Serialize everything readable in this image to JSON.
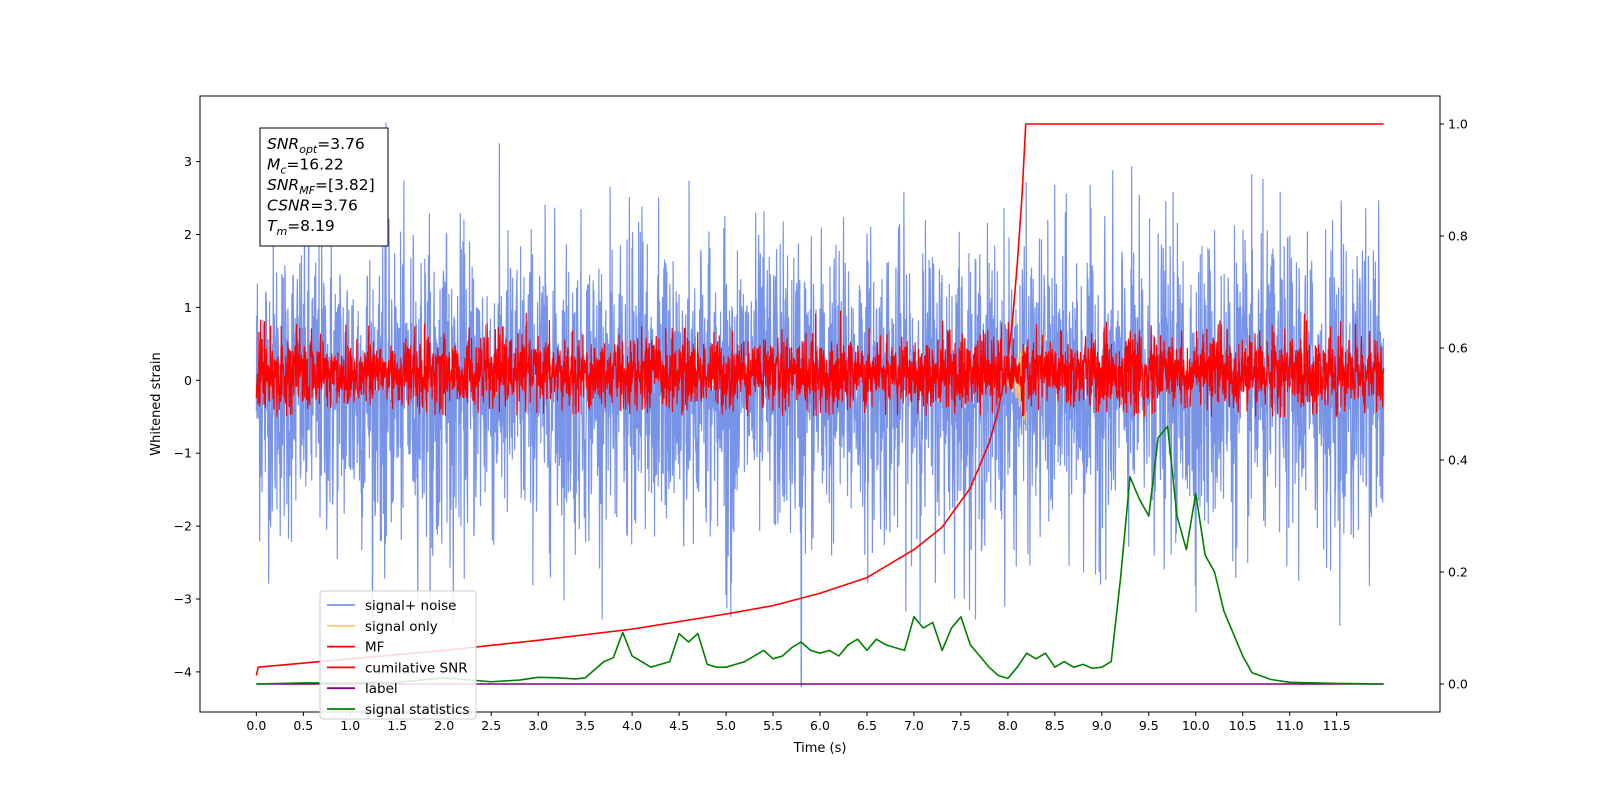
{
  "chart_data": {
    "type": "line",
    "xlabel": "Time (s)",
    "ylabel": "Whitened strain",
    "xlim": [
      -0.6,
      12.6
    ],
    "ylim": [
      -4.55,
      3.9
    ],
    "ylim_right": [
      -0.05,
      1.05
    ],
    "x_ticks": [
      "0.0",
      "0.5",
      "1.0",
      "1.5",
      "2.0",
      "2.5",
      "3.0",
      "3.5",
      "4.0",
      "4.5",
      "5.0",
      "5.5",
      "6.0",
      "6.5",
      "7.0",
      "7.5",
      "8.0",
      "8.5",
      "9.0",
      "9.5",
      "10.0",
      "10.5",
      "11.0",
      "11.5"
    ],
    "x_tick_values": [
      0.0,
      0.5,
      1.0,
      1.5,
      2.0,
      2.5,
      3.0,
      3.5,
      4.0,
      4.5,
      5.0,
      5.5,
      6.0,
      6.5,
      7.0,
      7.5,
      8.0,
      8.5,
      9.0,
      9.5,
      10.0,
      10.5,
      11.0,
      11.5
    ],
    "y_ticks_left": [
      "3",
      "2",
      "1",
      "0",
      "−1",
      "−2",
      "−3",
      "−4"
    ],
    "y_tick_values_left": [
      3,
      2,
      1,
      0,
      -1,
      -2,
      -3,
      -4
    ],
    "y_ticks_right": [
      "1.0",
      "0.8",
      "0.6",
      "0.4",
      "0.2",
      "0.0"
    ],
    "y_tick_values_right": [
      1.0,
      0.8,
      0.6,
      0.4,
      0.2,
      0.0
    ],
    "grid": false,
    "legend_position": "lower-left",
    "legend": [
      {
        "label": "signal+ noise",
        "color": "#7894e8"
      },
      {
        "label": "signal only",
        "color": "#f5c97a"
      },
      {
        "label": "MF",
        "color": "#ff0000"
      },
      {
        "label": "cumilative SNR",
        "color": "#ff0000"
      },
      {
        "label": "label",
        "color": "#800080"
      },
      {
        "label": "signal statistics",
        "color": "#008000"
      }
    ],
    "annotation": {
      "lines": [
        {
          "var": "SNR",
          "sub": "opt",
          "value": "=3.76"
        },
        {
          "var": "M",
          "sub": "c",
          "value": "=16.22"
        },
        {
          "var": "SNR",
          "sub": "MF",
          "value": "=[3.82]"
        },
        {
          "var": "CSNR",
          "sub": "",
          "value": "=3.76"
        },
        {
          "var": "T",
          "sub": "m",
          "value": "=8.19"
        }
      ]
    },
    "series": [
      {
        "name": "signal+ noise",
        "axis": "left",
        "color": "#7894e8",
        "kind": "noise",
        "x_range": [
          0.0,
          12.0
        ],
        "center": -0.1,
        "typical_range": [
          -2.3,
          2.3
        ],
        "extremes": [
          -3.4,
          3.55
        ],
        "spike": {
          "x": 5.8,
          "min": -4.2
        }
      },
      {
        "name": "signal only",
        "axis": "left",
        "color": "#f5c97a",
        "kind": "chirp",
        "x_range": [
          7.9,
          8.19
        ],
        "peak_amplitude": 0.6
      },
      {
        "name": "MF",
        "axis": "left",
        "color": "#ff0000",
        "kind": "noise",
        "x_range": [
          0.0,
          12.0
        ],
        "center": 0.1,
        "typical_range": [
          -0.45,
          0.7
        ],
        "extremes": [
          -0.5,
          0.95
        ]
      },
      {
        "name": "cumilative SNR",
        "axis": "right",
        "color": "#ff0000",
        "x": [
          0.0,
          0.02,
          1.0,
          2.0,
          3.0,
          4.0,
          5.0,
          5.5,
          6.0,
          6.5,
          7.0,
          7.3,
          7.6,
          7.8,
          7.9,
          8.0,
          8.05,
          8.1,
          8.15,
          8.19,
          12.0
        ],
        "values": [
          0.015,
          0.03,
          0.045,
          0.06,
          0.078,
          0.098,
          0.125,
          0.14,
          0.162,
          0.19,
          0.24,
          0.28,
          0.35,
          0.43,
          0.49,
          0.58,
          0.65,
          0.75,
          0.87,
          1.0,
          1.0
        ]
      },
      {
        "name": "label",
        "axis": "right",
        "color": "#800080",
        "x": [
          0.0,
          12.0
        ],
        "values": [
          0.0,
          0.0
        ]
      },
      {
        "name": "signal statistics",
        "axis": "right",
        "color": "#008000",
        "x": [
          0.0,
          0.5,
          1.0,
          1.5,
          2.0,
          2.5,
          2.8,
          3.0,
          3.2,
          3.4,
          3.5,
          3.7,
          3.8,
          3.9,
          4.0,
          4.1,
          4.2,
          4.3,
          4.4,
          4.5,
          4.6,
          4.7,
          4.8,
          4.9,
          5.0,
          5.2,
          5.4,
          5.5,
          5.6,
          5.7,
          5.8,
          5.9,
          6.0,
          6.1,
          6.2,
          6.3,
          6.4,
          6.5,
          6.6,
          6.7,
          6.8,
          6.9,
          7.0,
          7.1,
          7.2,
          7.3,
          7.4,
          7.5,
          7.6,
          7.7,
          7.8,
          7.9,
          8.0,
          8.1,
          8.2,
          8.3,
          8.4,
          8.5,
          8.6,
          8.7,
          8.8,
          8.9,
          9.0,
          9.1,
          9.2,
          9.3,
          9.4,
          9.5,
          9.6,
          9.7,
          9.8,
          9.9,
          10.0,
          10.1,
          10.2,
          10.3,
          10.4,
          10.5,
          10.6,
          10.8,
          11.0,
          11.5,
          12.0
        ],
        "values": [
          0.0,
          0.002,
          0.002,
          0.003,
          0.011,
          0.004,
          0.007,
          0.012,
          0.011,
          0.009,
          0.011,
          0.04,
          0.047,
          0.092,
          0.05,
          0.04,
          0.03,
          0.035,
          0.04,
          0.09,
          0.075,
          0.09,
          0.035,
          0.03,
          0.03,
          0.04,
          0.06,
          0.045,
          0.05,
          0.065,
          0.075,
          0.06,
          0.055,
          0.06,
          0.05,
          0.07,
          0.08,
          0.06,
          0.08,
          0.07,
          0.065,
          0.06,
          0.12,
          0.1,
          0.11,
          0.06,
          0.1,
          0.12,
          0.07,
          0.05,
          0.03,
          0.015,
          0.01,
          0.03,
          0.055,
          0.045,
          0.055,
          0.03,
          0.04,
          0.03,
          0.035,
          0.028,
          0.03,
          0.04,
          0.19,
          0.37,
          0.33,
          0.3,
          0.44,
          0.46,
          0.3,
          0.24,
          0.34,
          0.23,
          0.2,
          0.13,
          0.09,
          0.05,
          0.02,
          0.008,
          0.003,
          0.001,
          0.0
        ]
      }
    ]
  }
}
